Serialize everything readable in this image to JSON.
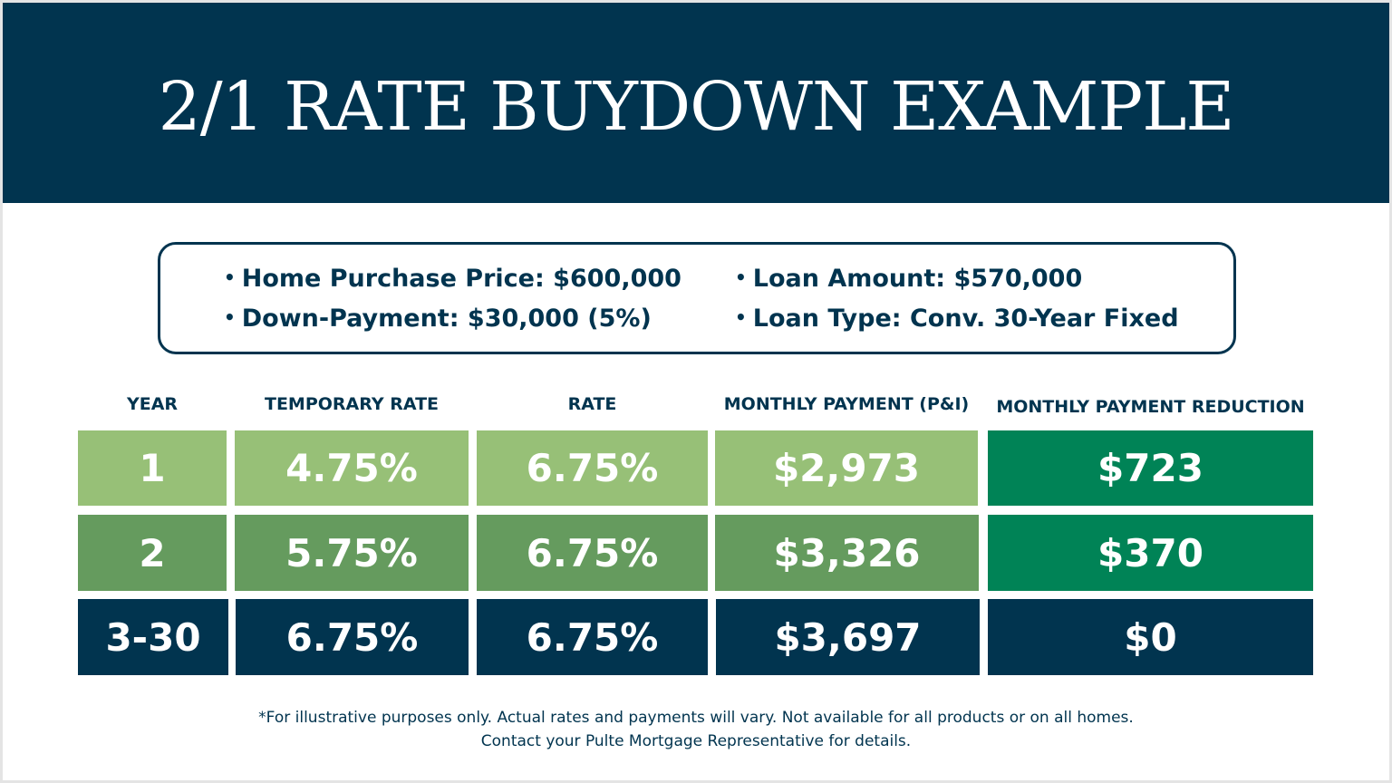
{
  "title": "2/1 RATE BUYDOWN EXAMPLE",
  "details": {
    "left": [
      "Home Purchase Price: $600,000",
      "Down-Payment: $30,000 (5%)"
    ],
    "right": [
      "Loan Amount: $570,000",
      "Loan Type: Conv. 30-Year Fixed"
    ]
  },
  "table": {
    "headers": [
      "YEAR",
      "TEMPORARY RATE",
      "RATE",
      "MONTHLY PAYMENT (P&I)",
      "MONTHLY PAYMENT REDUCTION"
    ],
    "rows": [
      [
        "1",
        "4.75%",
        "6.75%",
        "$2,973",
        "$723"
      ],
      [
        "2",
        "5.75%",
        "6.75%",
        "$3,326",
        "$370"
      ],
      [
        "3-30",
        "6.75%",
        "6.75%",
        "$3,697",
        "$0"
      ]
    ]
  },
  "colors": {
    "navy": "#01344f",
    "light_green": "#97c077",
    "mid_green": "#659b5e",
    "dark_green": "#008356"
  },
  "footnote": [
    "*For illustrative purposes only. Actual rates and payments will vary. Not available for all products or on all homes.",
    "Contact your Pulte Mortgage Representative for details."
  ]
}
